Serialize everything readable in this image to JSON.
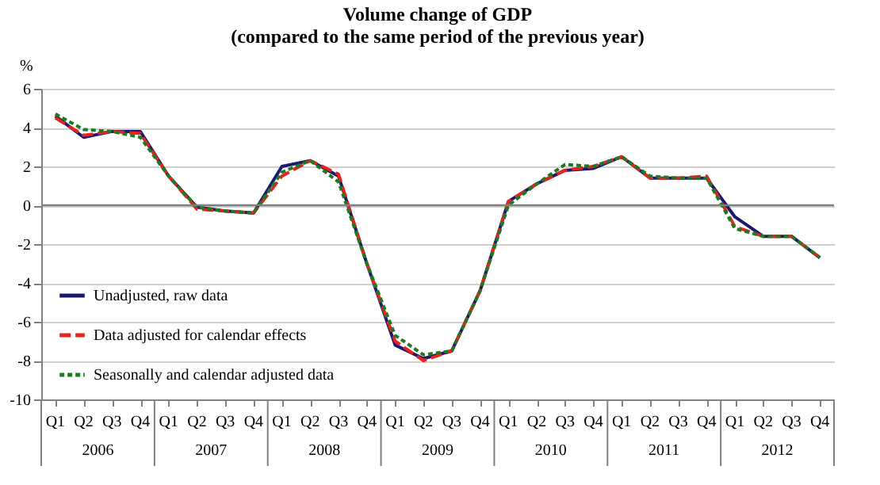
{
  "chart_data": {
    "type": "line",
    "title": "Volume change of GDP\n(compared to the same period of the previous year)",
    "ylabel": "%",
    "categories": [
      "Q1",
      "Q2",
      "Q3",
      "Q4",
      "Q1",
      "Q2",
      "Q3",
      "Q4",
      "Q1",
      "Q2",
      "Q3",
      "Q4",
      "Q1",
      "Q2",
      "Q3",
      "Q4",
      "Q1",
      "Q2",
      "Q3",
      "Q4",
      "Q1",
      "Q2",
      "Q3",
      "Q4",
      "Q1",
      "Q2",
      "Q3",
      "Q4"
    ],
    "annotations": [
      "2006",
      "2007",
      "2008",
      "2009",
      "2010",
      "2011",
      "2012"
    ],
    "series": [
      {
        "name": "Unadjusted, raw data",
        "color": "#1a1a6e",
        "line_style": "solid",
        "values": [
          4.6,
          3.5,
          3.8,
          3.8,
          1.5,
          -0.1,
          -0.3,
          -0.4,
          2.0,
          2.3,
          1.5,
          -3.0,
          -7.2,
          -7.9,
          -7.5,
          -4.4,
          0.2,
          1.1,
          1.8,
          1.9,
          2.5,
          1.4,
          1.4,
          1.4,
          -0.6,
          -1.6,
          -1.6,
          -2.7
        ]
      },
      {
        "name": "Data adjusted for calendar effects",
        "color": "#e8231f",
        "line_style": "dashed",
        "values": [
          4.5,
          3.6,
          3.8,
          3.7,
          1.5,
          -0.2,
          -0.3,
          -0.4,
          1.5,
          2.3,
          1.6,
          -3.0,
          -7.0,
          -8.0,
          -7.5,
          -4.4,
          0.2,
          1.1,
          1.8,
          2.0,
          2.5,
          1.4,
          1.4,
          1.5,
          -1.1,
          -1.6,
          -1.6,
          -2.7
        ]
      },
      {
        "name": "Seasonally and calendar adjusted data",
        "color": "#1e7a1e",
        "line_style": "dotted",
        "values": [
          4.7,
          3.9,
          3.8,
          3.5,
          1.5,
          -0.1,
          -0.3,
          -0.4,
          1.7,
          2.3,
          1.2,
          -3.0,
          -6.7,
          -7.7,
          -7.5,
          -4.4,
          0.0,
          1.1,
          2.1,
          2.0,
          2.5,
          1.5,
          1.4,
          1.4,
          -1.2,
          -1.6,
          -1.6,
          -2.7
        ]
      }
    ],
    "ylim": [
      -10,
      6
    ],
    "yticks": [
      -10,
      -8,
      -6,
      -4,
      -2,
      0,
      2,
      4,
      6
    ],
    "ref_lines": [
      {
        "axis": "y",
        "value": 0,
        "color": "#808080"
      }
    ],
    "grid": "y",
    "legend": "bottom left",
    "marker": "none"
  }
}
